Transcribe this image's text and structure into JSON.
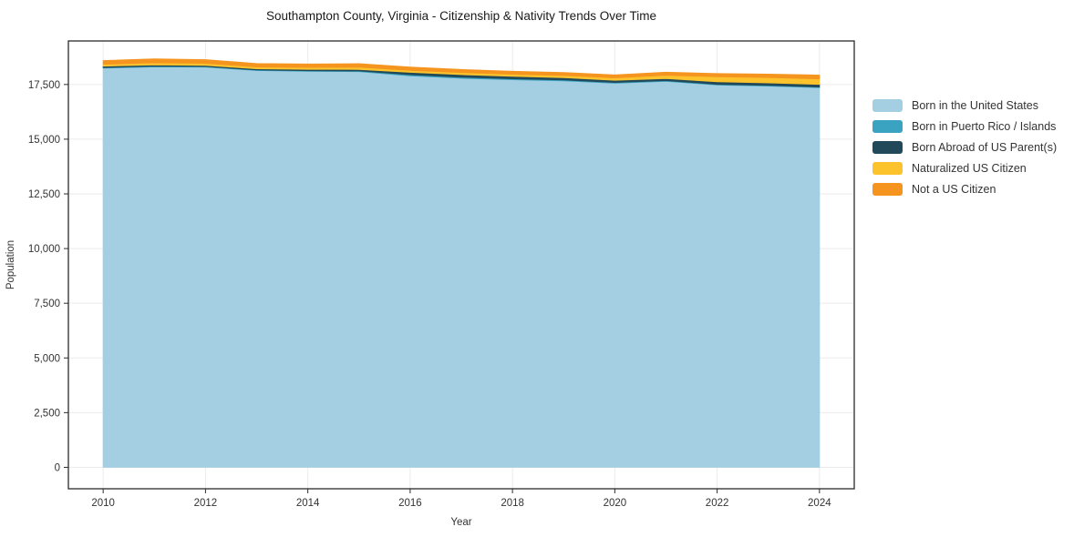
{
  "page": {
    "background": "#ffffff"
  },
  "chart_data": {
    "type": "area",
    "stacked": true,
    "title": "Southampton County, Virginia - Citizenship & Nativity Trends Over Time",
    "xlabel": "Year",
    "ylabel": "Population",
    "x": [
      2010,
      2011,
      2012,
      2013,
      2014,
      2015,
      2016,
      2017,
      2018,
      2019,
      2020,
      2021,
      2022,
      2023,
      2024
    ],
    "x_ticks": [
      2010,
      2012,
      2014,
      2016,
      2018,
      2020,
      2022,
      2024
    ],
    "y_ticks": [
      0,
      2500,
      5000,
      7500,
      10000,
      12500,
      15000,
      17500
    ],
    "y_tick_labels": [
      "0",
      "2,500",
      "5,000",
      "7,500",
      "10,000",
      "12,500",
      "15,000",
      "17,500"
    ],
    "xlim": [
      2009.32,
      2024.68
    ],
    "ylim": [
      -980,
      19490
    ],
    "grid": true,
    "grid_color": "#ebebeb",
    "frame_color": "#2b2b2b",
    "legend_position": "right-outside",
    "series": [
      {
        "name": "Born in the United States",
        "color": "#a4cfe3",
        "values": [
          18250,
          18310,
          18300,
          18140,
          18110,
          18090,
          17900,
          17790,
          17720,
          17670,
          17560,
          17650,
          17480,
          17430,
          17360
        ]
      },
      {
        "name": "Born in Puerto Rico / Islands",
        "color": "#3aa3c2",
        "values": [
          30,
          30,
          25,
          25,
          25,
          30,
          50,
          50,
          45,
          40,
          35,
          30,
          30,
          30,
          30
        ]
      },
      {
        "name": "Born Abroad of US Parent(s)",
        "color": "#21495a",
        "values": [
          60,
          60,
          55,
          55,
          60,
          70,
          110,
          115,
          110,
          105,
          100,
          95,
          115,
          115,
          120
        ]
      },
      {
        "name": "Naturalized US Citizen",
        "color": "#fcc32d",
        "values": [
          90,
          95,
          90,
          85,
          90,
          100,
          90,
          95,
          95,
          100,
          110,
          150,
          230,
          245,
          250
        ]
      },
      {
        "name": "Not a US Citizen",
        "color": "#f5951f",
        "values": [
          160,
          170,
          165,
          150,
          150,
          160,
          140,
          135,
          130,
          130,
          130,
          135,
          140,
          150,
          165
        ]
      }
    ]
  }
}
